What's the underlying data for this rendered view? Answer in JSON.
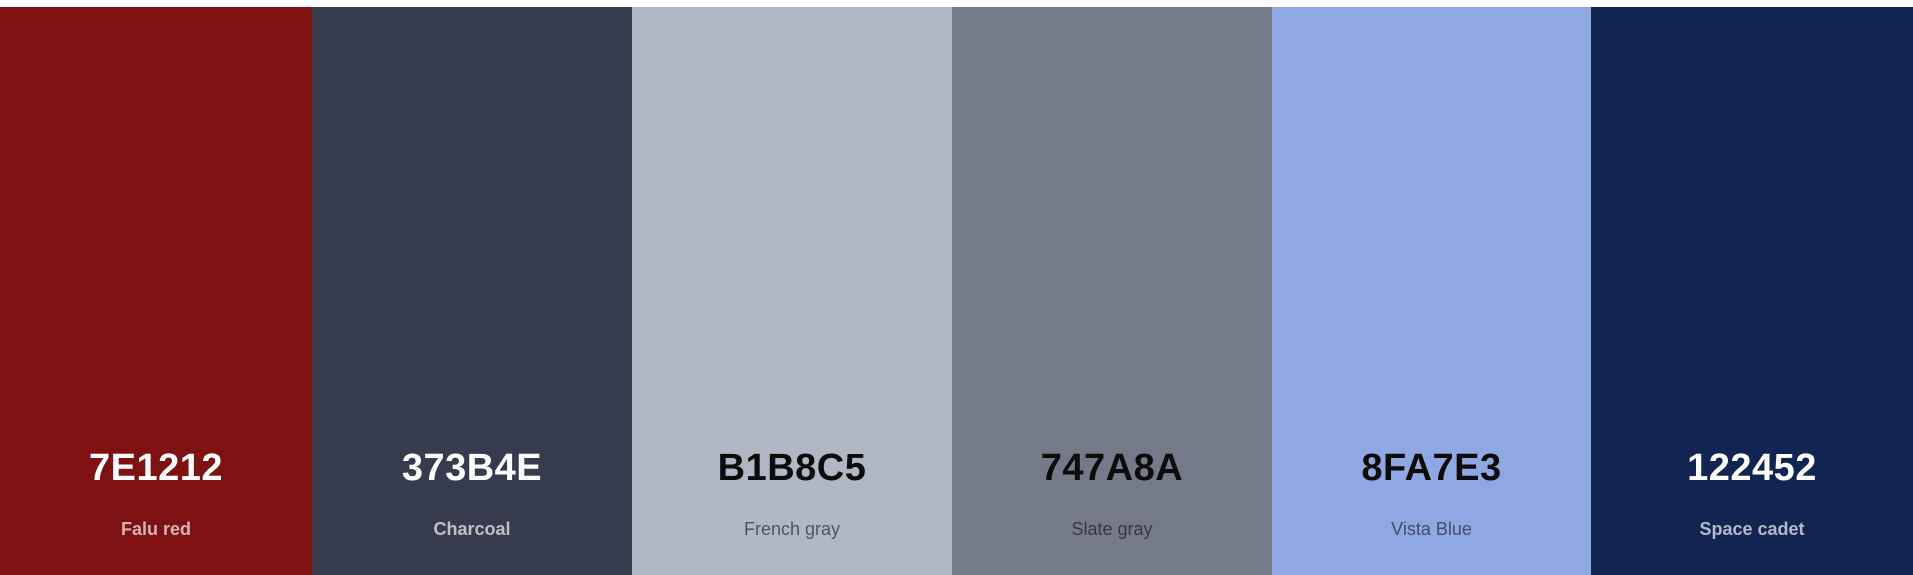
{
  "palette": {
    "colors": [
      {
        "hex": "7E1212",
        "name": "Falu red",
        "color": "#7E1212",
        "text_theme": "light"
      },
      {
        "hex": "373B4E",
        "name": "Charcoal",
        "color": "#373B4E",
        "text_theme": "light"
      },
      {
        "hex": "B1B8C5",
        "name": "French gray",
        "color": "#B1B8C5",
        "text_theme": "dark"
      },
      {
        "hex": "747A8A",
        "name": "Slate gray",
        "color": "#747A8A",
        "text_theme": "dark"
      },
      {
        "hex": "8FA7E3",
        "name": "Vista Blue",
        "color": "#8FA7E3",
        "text_theme": "dark"
      },
      {
        "hex": "122452",
        "name": "Space cadet",
        "color": "#122452",
        "text_theme": "light"
      }
    ]
  }
}
